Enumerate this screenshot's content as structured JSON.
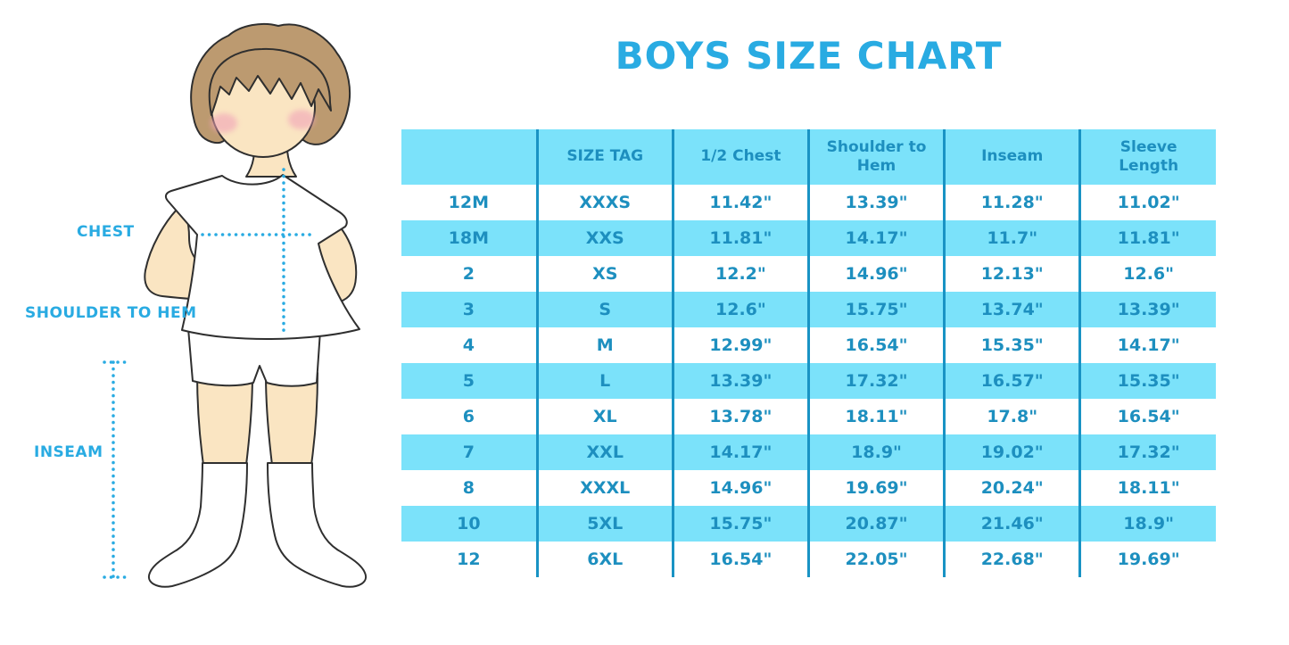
{
  "title": "BOYS SIZE CHART",
  "figure": {
    "labels": {
      "chest": "CHEST",
      "shoulder_to_hem": "SHOULDER TO HEM",
      "inseam": "INSEAM"
    }
  },
  "table": {
    "columns": [
      "",
      "SIZE TAG",
      "1/2 Chest",
      "Shoulder to Hem",
      "Inseam",
      "Sleeve Length"
    ],
    "rows": [
      [
        "12M",
        "XXXS",
        "11.42\"",
        "13.39\"",
        "11.28\"",
        "11.02\""
      ],
      [
        "18M",
        "XXS",
        "11.81\"",
        "14.17\"",
        "11.7\"",
        "11.81\""
      ],
      [
        "2",
        "XS",
        "12.2\"",
        "14.96\"",
        "12.13\"",
        "12.6\""
      ],
      [
        "3",
        "S",
        "12.6\"",
        "15.75\"",
        "13.74\"",
        "13.39\""
      ],
      [
        "4",
        "M",
        "12.99\"",
        "16.54\"",
        "15.35\"",
        "14.17\""
      ],
      [
        "5",
        "L",
        "13.39\"",
        "17.32\"",
        "16.57\"",
        "15.35\""
      ],
      [
        "6",
        "XL",
        "13.78\"",
        "18.11\"",
        "17.8\"",
        "16.54\""
      ],
      [
        "7",
        "XXL",
        "14.17\"",
        "18.9\"",
        "19.02\"",
        "17.32\""
      ],
      [
        "8",
        "XXXL",
        "14.96\"",
        "19.69\"",
        "20.24\"",
        "18.11\""
      ],
      [
        "10",
        "5XL",
        "15.75\"",
        "20.87\"",
        "21.46\"",
        "18.9\""
      ],
      [
        "12",
        "6XL",
        "16.54\"",
        "22.05\"",
        "22.68\"",
        "19.69\""
      ]
    ]
  },
  "colors": {
    "accent": "#29ABE2",
    "stripe": "#7BE2FA",
    "table-text": "#1D8FBF",
    "divider": "#1993C4",
    "skin": "#FAE5C2",
    "hair": "#BC9A70",
    "outline": "#2F2F2F",
    "blush": "#F1A3B8"
  }
}
